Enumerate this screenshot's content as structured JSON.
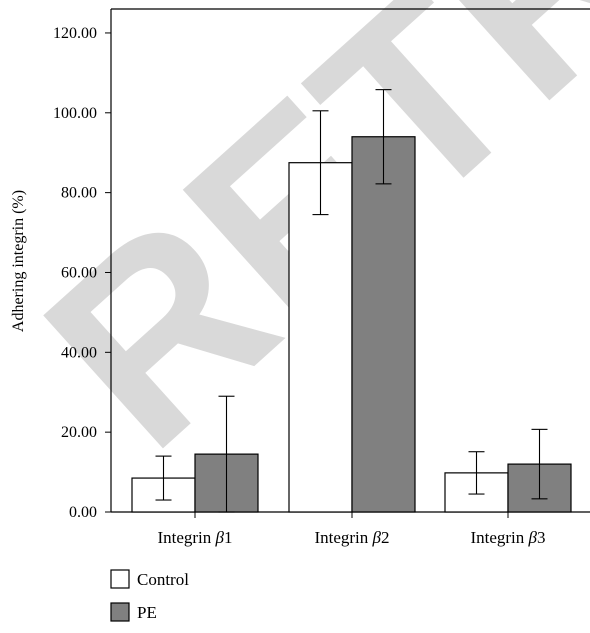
{
  "watermark": {
    "text": "RETRACTED",
    "color": "#d9d9d9"
  },
  "colors": {
    "control": "#ffffff",
    "pe": "#808080",
    "stroke": "#000000"
  },
  "chart_data": {
    "type": "bar",
    "title": "",
    "xlabel": "",
    "ylabel": "Adhering integrin (%)",
    "ylim": [
      0,
      126
    ],
    "yticks": [
      "0.00",
      "20.00",
      "40.00",
      "60.00",
      "80.00",
      "100.00",
      "120.00"
    ],
    "ytick_values": [
      0,
      20,
      40,
      60,
      80,
      100,
      120
    ],
    "category_labels": [
      {
        "prefix": "Integrin ",
        "greek": "β",
        "suffix": "1"
      },
      {
        "prefix": "Integrin ",
        "greek": "β",
        "suffix": "2"
      },
      {
        "prefix": "Integrin ",
        "greek": "β",
        "suffix": "3"
      }
    ],
    "series": [
      {
        "name": "Control",
        "values": [
          8.5,
          87.5,
          9.8
        ],
        "error": [
          5.5,
          13.0,
          5.3
        ]
      },
      {
        "name": "PE",
        "values": [
          14.5,
          94.0,
          12.0
        ],
        "error": [
          14.5,
          11.8,
          8.7
        ]
      }
    ],
    "legend": {
      "position": "bottom-left"
    },
    "grid": false
  }
}
